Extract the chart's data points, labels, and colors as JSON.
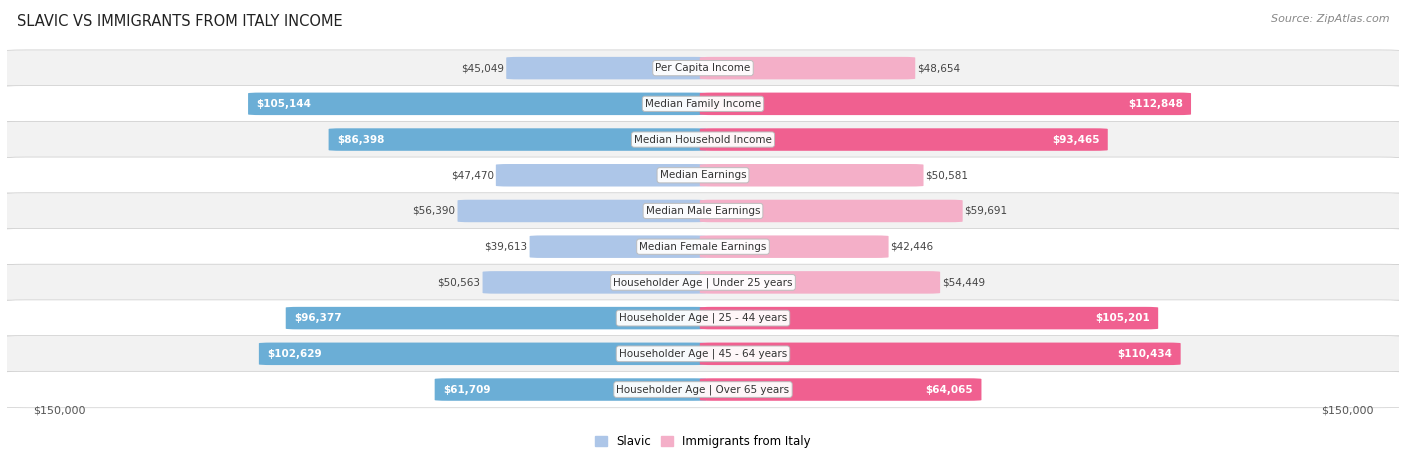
{
  "title": "Slavic vs Immigrants from Italy Income",
  "title_display": "SLAVIC VS IMMIGRANTS FROM ITALY INCOME",
  "source": "Source: ZipAtlas.com",
  "categories": [
    "Per Capita Income",
    "Median Family Income",
    "Median Household Income",
    "Median Earnings",
    "Median Male Earnings",
    "Median Female Earnings",
    "Householder Age | Under 25 years",
    "Householder Age | 25 - 44 years",
    "Householder Age | 45 - 64 years",
    "Householder Age | Over 65 years"
  ],
  "slavic_values": [
    45049,
    105144,
    86398,
    47470,
    56390,
    39613,
    50563,
    96377,
    102629,
    61709
  ],
  "italy_values": [
    48654,
    112848,
    93465,
    50581,
    59691,
    42446,
    54449,
    105201,
    110434,
    64065
  ],
  "slavic_labels": [
    "$45,049",
    "$105,144",
    "$86,398",
    "$47,470",
    "$56,390",
    "$39,613",
    "$50,563",
    "$96,377",
    "$102,629",
    "$61,709"
  ],
  "italy_labels": [
    "$48,654",
    "$112,848",
    "$93,465",
    "$50,581",
    "$59,691",
    "$42,446",
    "$54,449",
    "$105,201",
    "$110,434",
    "$64,065"
  ],
  "slavic_color_light": "#adc6e8",
  "slavic_color_dark": "#6baed6",
  "italy_color_light": "#f4afc8",
  "italy_color_dark": "#f06090",
  "inside_label_threshold": 60000,
  "max_value": 150000,
  "row_colors": [
    "#f2f2f2",
    "#ffffff"
  ],
  "bar_height": 0.62,
  "legend_slavic": "Slavic",
  "legend_italy": "Immigrants from Italy",
  "xlabel_left": "$150,000",
  "xlabel_right": "$150,000"
}
